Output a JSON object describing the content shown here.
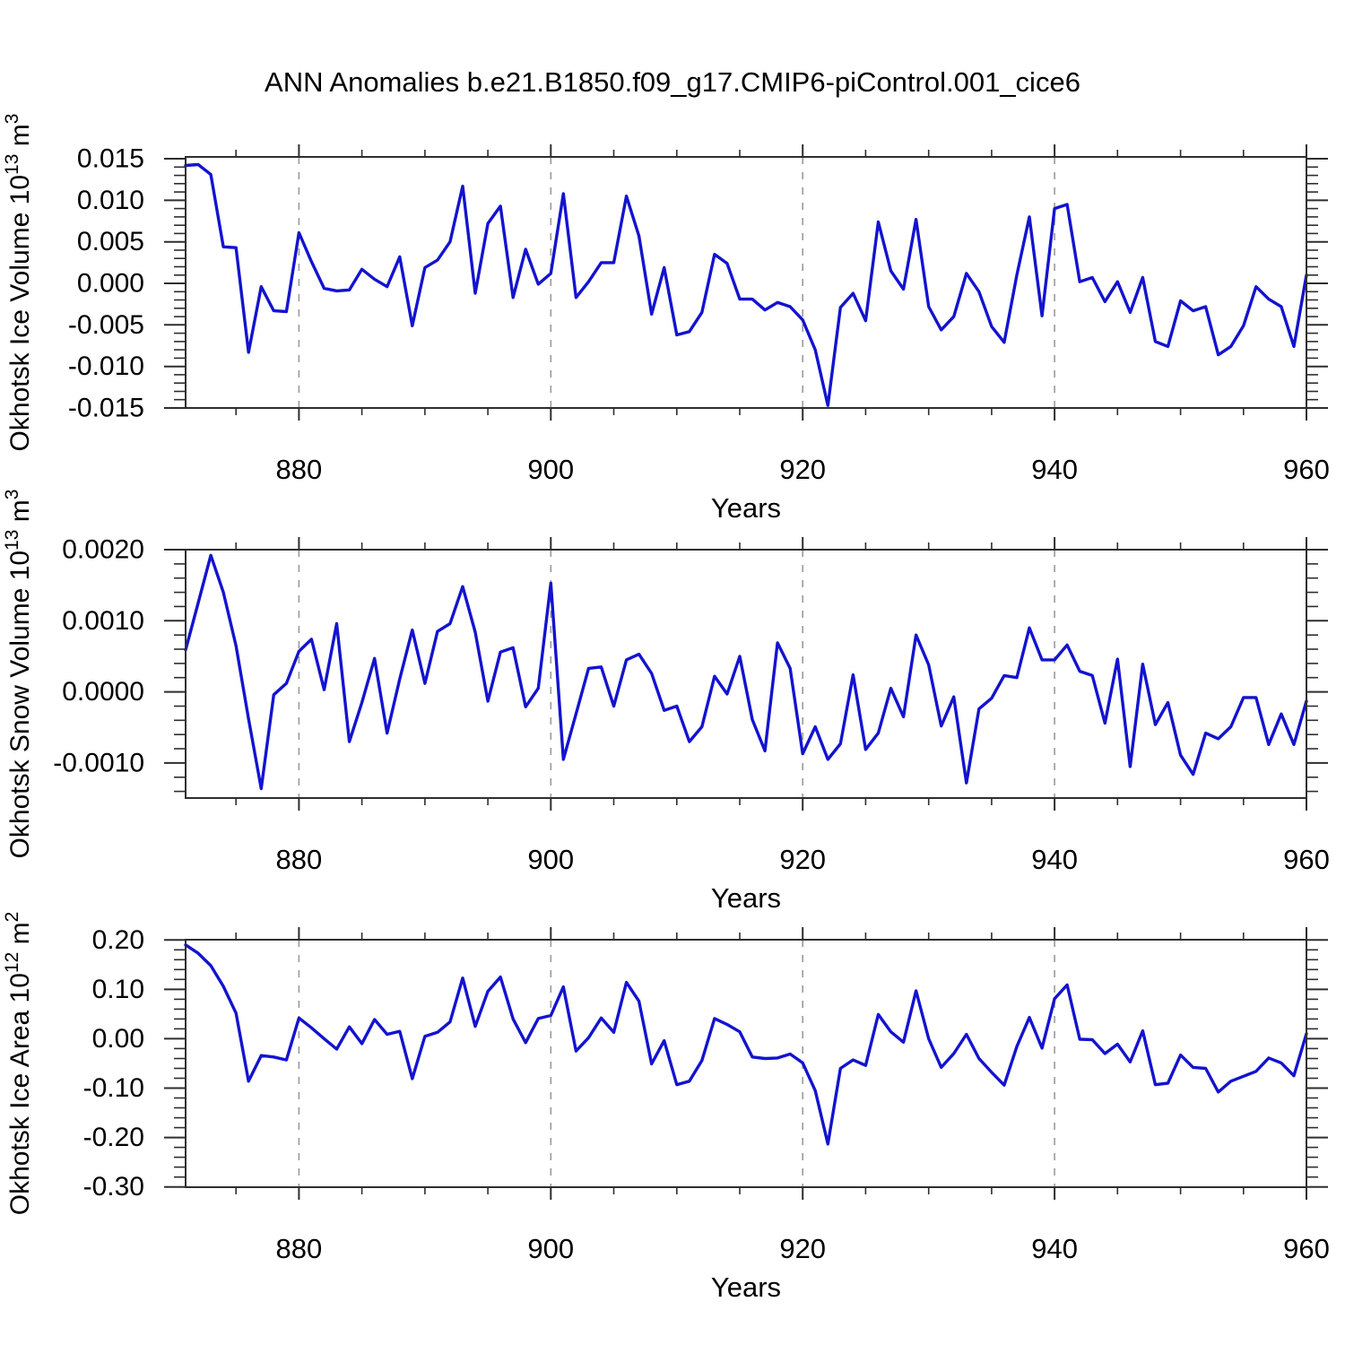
{
  "title": "ANN Anomalies b.e21.B1850.f09_g17.CMIP6-piControl.001_cice6",
  "colors": {
    "line": "#1313cf",
    "axis": "#2e2e2e",
    "grid": "#9a9a9a",
    "text": "#000000",
    "background": "#ffffff"
  },
  "chart_data": {
    "type": "line",
    "x_start": 871,
    "x_end": 960,
    "x_major_ticks": [
      {
        "v": 880,
        "label": "880"
      },
      {
        "v": 900,
        "label": "900"
      },
      {
        "v": 920,
        "label": "920"
      },
      {
        "v": 940,
        "label": "940"
      },
      {
        "v": 960,
        "label": "960"
      }
    ],
    "x_minor_start": 875,
    "x_minor_step": 5,
    "dashed_gridline_years": [
      880,
      900,
      920,
      940
    ],
    "panels": [
      {
        "name": "okhotsk-ice-volume",
        "xlabel": "Years",
        "ylabel_parts": [
          {
            "t": "Okhotsk Ice Volume 10",
            "sup": false
          },
          {
            "t": "13",
            "sup": true
          },
          {
            "t": " m",
            "sup": false
          },
          {
            "t": "3",
            "sup": true
          }
        ],
        "yticks": [
          {
            "v": 0.015,
            "label": "0.015"
          },
          {
            "v": 0.01,
            "label": "0.010"
          },
          {
            "v": 0.005,
            "label": "0.005"
          },
          {
            "v": 0.0,
            "label": "0.000"
          },
          {
            "v": -0.005,
            "label": "-0.005"
          },
          {
            "v": -0.01,
            "label": "-0.010"
          },
          {
            "v": -0.015,
            "label": "-0.015"
          }
        ],
        "y_minor_step": 0.001,
        "ylim": [
          -0.015,
          0.01522
        ],
        "values": [
          0.0142,
          0.0143,
          0.0131,
          0.0044,
          0.0043,
          -0.0083,
          -0.0004,
          -0.0033,
          -0.0034,
          0.0061,
          0.0026,
          -0.0006,
          -0.0009,
          -0.0008,
          0.0017,
          0.0005,
          -0.0004,
          0.0032,
          -0.0051,
          0.0019,
          0.0028,
          0.005,
          0.0117,
          -0.0012,
          0.0072,
          0.0093,
          -0.0017,
          0.0041,
          -0.0001,
          0.0012,
          0.0108,
          -0.0017,
          0.0002,
          0.0025,
          0.0025,
          0.0105,
          0.0057,
          -0.0037,
          0.0019,
          -0.0062,
          -0.0058,
          -0.0035,
          0.0035,
          0.0024,
          -0.0019,
          -0.0019,
          -0.0032,
          -0.0023,
          -0.0028,
          -0.0044,
          -0.008,
          -0.0147,
          -0.0029,
          -0.0012,
          -0.0045,
          0.0074,
          0.0015,
          -0.0007,
          0.0077,
          -0.0028,
          -0.0056,
          -0.004,
          0.0012,
          -0.001,
          -0.0052,
          -0.0071,
          0.001,
          0.008,
          -0.0039,
          0.009,
          0.0095,
          0.0002,
          0.0007,
          -0.0022,
          0.0002,
          -0.0035,
          0.0007,
          -0.007,
          -0.0076,
          -0.0021,
          -0.0033,
          -0.0028,
          -0.0086,
          -0.0076,
          -0.0051,
          -0.0004,
          -0.0019,
          -0.0028,
          -0.0076,
          0.001
        ]
      },
      {
        "name": "okhotsk-snow-volume",
        "xlabel": "Years",
        "ylabel_parts": [
          {
            "t": "Okhotsk Snow Volume 10",
            "sup": false
          },
          {
            "t": "13",
            "sup": true
          },
          {
            "t": " m",
            "sup": false
          },
          {
            "t": "3",
            "sup": true
          }
        ],
        "yticks": [
          {
            "v": 0.002,
            "label": "0.0020"
          },
          {
            "v": 0.001,
            "label": "0.0010"
          },
          {
            "v": 0.0,
            "label": "0.0000"
          },
          {
            "v": -0.001,
            "label": "-0.0010"
          }
        ],
        "y_minor_step": 0.0002,
        "ylim": [
          -0.001493,
          0.002
        ],
        "values": [
          0.00059,
          0.00125,
          0.00192,
          0.0014,
          0.00065,
          -0.00038,
          -0.00136,
          -4e-05,
          0.00012,
          0.00057,
          0.00074,
          3e-05,
          0.00096,
          -0.0007,
          -0.00015,
          0.00047,
          -0.00058,
          0.00018,
          0.00087,
          0.00012,
          0.00085,
          0.00096,
          0.00148,
          0.00084,
          -0.00013,
          0.00056,
          0.00062,
          -0.00021,
          5e-05,
          0.00153,
          -0.00095,
          -0.00031,
          0.00033,
          0.00035,
          -0.0002,
          0.00045,
          0.00053,
          0.00026,
          -0.00026,
          -0.0002,
          -0.0007,
          -0.00049,
          0.00022,
          -3e-05,
          0.0005,
          -0.00039,
          -0.00083,
          0.00069,
          0.00033,
          -0.00087,
          -0.00049,
          -0.00095,
          -0.00073,
          0.00024,
          -0.00081,
          -0.00058,
          5e-05,
          -0.00035,
          0.0008,
          0.00038,
          -0.00048,
          -7e-05,
          -0.00128,
          -0.00024,
          -9e-05,
          0.00023,
          0.0002,
          0.0009,
          0.00045,
          0.00045,
          0.00066,
          0.00029,
          0.00023,
          -0.00044,
          0.00046,
          -0.00105,
          0.00039,
          -0.00046,
          -0.00015,
          -0.00089,
          -0.00116,
          -0.00058,
          -0.00066,
          -0.00049,
          -8e-05,
          -8e-05,
          -0.00074,
          -0.00031,
          -0.00074,
          -0.00013
        ]
      },
      {
        "name": "okhotsk-ice-area",
        "xlabel": "Years",
        "ylabel_parts": [
          {
            "t": "Okhotsk Ice Area 10",
            "sup": false
          },
          {
            "t": "12",
            "sup": true
          },
          {
            "t": " m",
            "sup": false
          },
          {
            "t": "2",
            "sup": true
          }
        ],
        "yticks": [
          {
            "v": 0.2,
            "label": "0.20"
          },
          {
            "v": 0.1,
            "label": "0.10"
          },
          {
            "v": 0.0,
            "label": "0.00"
          },
          {
            "v": -0.1,
            "label": "-0.10"
          },
          {
            "v": -0.2,
            "label": "-0.20"
          },
          {
            "v": -0.3,
            "label": "-0.30"
          }
        ],
        "y_minor_step": 0.02,
        "ylim": [
          -0.3006,
          0.2005
        ],
        "values": [
          0.19,
          0.173,
          0.148,
          0.106,
          0.052,
          -0.086,
          -0.034,
          -0.037,
          -0.043,
          0.042,
          0.022,
          0.0,
          -0.021,
          0.024,
          -0.01,
          0.039,
          0.009,
          0.015,
          -0.081,
          0.005,
          0.013,
          0.034,
          0.123,
          0.025,
          0.096,
          0.125,
          0.04,
          -0.008,
          0.041,
          0.047,
          0.105,
          -0.025,
          0.002,
          0.042,
          0.013,
          0.114,
          0.076,
          -0.051,
          -0.004,
          -0.093,
          -0.086,
          -0.044,
          0.041,
          0.029,
          0.014,
          -0.037,
          -0.04,
          -0.039,
          -0.031,
          -0.049,
          -0.105,
          -0.213,
          -0.06,
          -0.043,
          -0.054,
          0.049,
          0.014,
          -0.007,
          0.097,
          0.0,
          -0.058,
          -0.03,
          0.009,
          -0.04,
          -0.068,
          -0.094,
          -0.016,
          0.043,
          -0.019,
          0.081,
          0.109,
          -0.001,
          -0.002,
          -0.03,
          -0.011,
          -0.047,
          0.016,
          -0.093,
          -0.09,
          -0.033,
          -0.058,
          -0.06,
          -0.108,
          -0.086,
          -0.076,
          -0.066,
          -0.039,
          -0.049,
          -0.075,
          0.01
        ]
      }
    ]
  }
}
